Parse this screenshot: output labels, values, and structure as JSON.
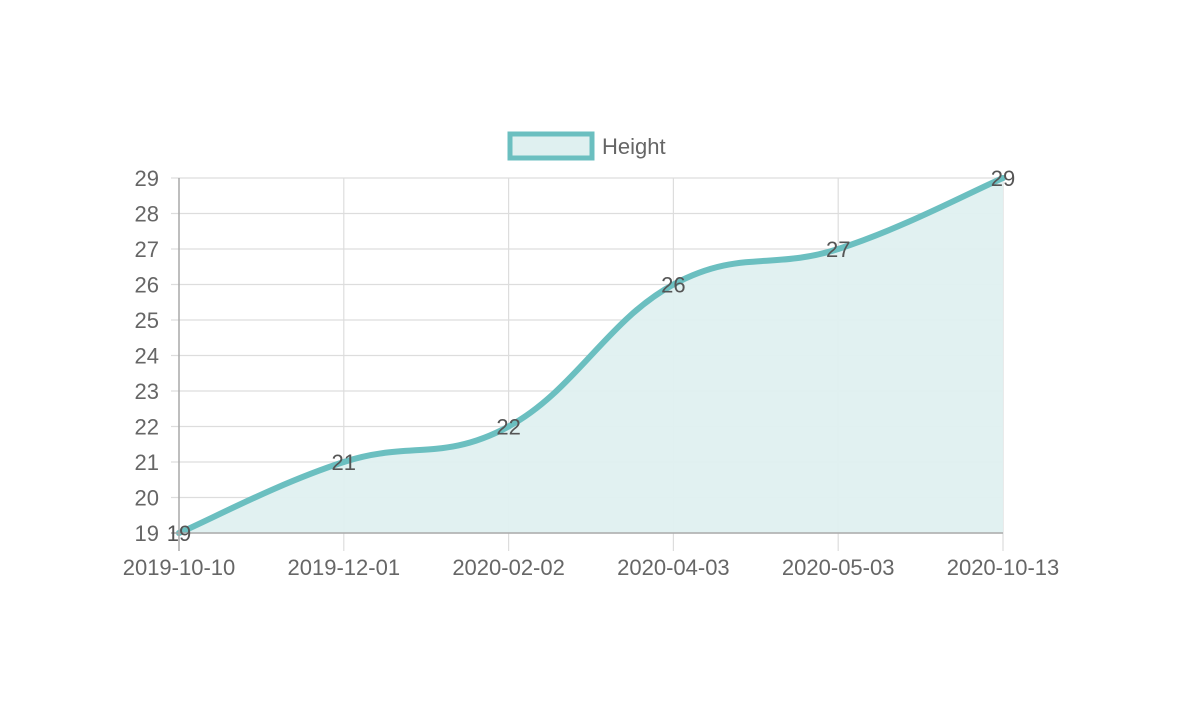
{
  "chart_data": {
    "type": "area",
    "x": [
      "2019-10-10",
      "2019-12-01",
      "2020-02-02",
      "2020-04-03",
      "2020-05-03",
      "2020-10-13"
    ],
    "series": [
      {
        "name": "Height",
        "values": [
          19,
          21,
          22,
          26,
          27,
          29
        ]
      }
    ],
    "y_ticks": [
      19,
      20,
      21,
      22,
      23,
      24,
      25,
      26,
      27,
      28,
      29
    ],
    "ylim": [
      19,
      29
    ],
    "grid": true,
    "legend_position": "top",
    "colors": {
      "line": "#6bbfc0",
      "fill": "#dff0f0",
      "grid": "#dddddd",
      "axis": "#aaaaaa"
    },
    "data_labels": true
  }
}
